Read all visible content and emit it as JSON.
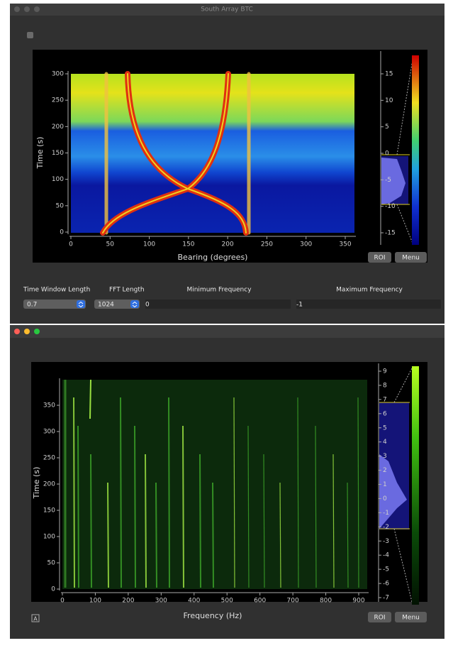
{
  "windows": [
    {
      "title": "South Array BTC",
      "plot": {
        "xlabel": "Bearing (degrees)",
        "ylabel": "Time (s)",
        "xticks": [
          0,
          50,
          100,
          150,
          200,
          250,
          300,
          350
        ],
        "yticks": [
          0,
          50,
          100,
          150,
          200,
          250,
          300
        ],
        "histogram_ticks": [
          15,
          10,
          5,
          0,
          -5,
          -10,
          -15
        ]
      },
      "buttons": [
        "ROI",
        "Menu"
      ],
      "controls": [
        {
          "label": "Time Window Length",
          "value": "0.7"
        },
        {
          "label": "FFT Length",
          "value": "1024"
        },
        {
          "label": "Minimum Frequency",
          "value": "0"
        },
        {
          "label": "Maximum Frequency",
          "value": "-1"
        }
      ]
    },
    {
      "plot": {
        "xlabel": "Frequency (Hz)",
        "ylabel": "Time (s)",
        "xticks": [
          0,
          100,
          200,
          300,
          400,
          500,
          600,
          700,
          800,
          900
        ],
        "yticks": [
          0,
          50,
          100,
          150,
          200,
          250,
          300,
          350
        ],
        "histogram_ticks": [
          9,
          8,
          7,
          6,
          5,
          4,
          3,
          2,
          1,
          0,
          -1,
          -2,
          -3,
          -4,
          -5,
          -6,
          -7
        ]
      },
      "buttons": [
        "ROI",
        "Menu"
      ],
      "corner_button": "A"
    }
  ]
}
